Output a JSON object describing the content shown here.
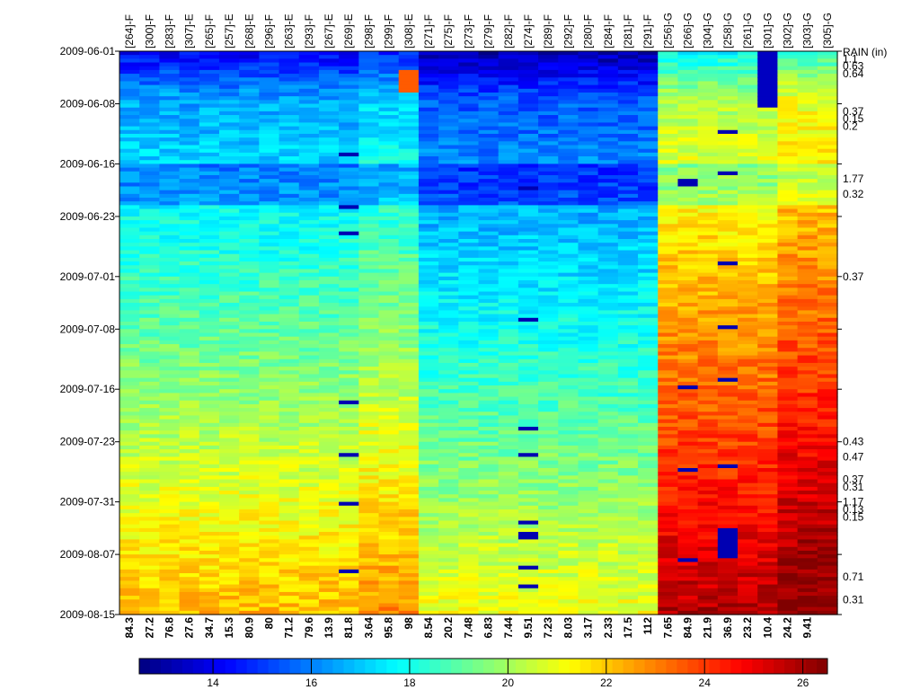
{
  "chart_data": {
    "type": "heatmap",
    "title": "",
    "right_axis_title": "RAIN (in)",
    "columns": [
      {
        "id": "[264]-F",
        "bottom": "84.3"
      },
      {
        "id": "[300]-F",
        "bottom": "27.2"
      },
      {
        "id": "[283]-F",
        "bottom": "76.8"
      },
      {
        "id": "[307]-E",
        "bottom": "27.6"
      },
      {
        "id": "[265]-F",
        "bottom": "34.7"
      },
      {
        "id": "[257]-E",
        "bottom": "15.3"
      },
      {
        "id": "[268]-E",
        "bottom": "80.9"
      },
      {
        "id": "[296]-F",
        "bottom": "80"
      },
      {
        "id": "[263]-E",
        "bottom": "71.2"
      },
      {
        "id": "[293]-F",
        "bottom": "79.6"
      },
      {
        "id": "[267]-E",
        "bottom": "13.9"
      },
      {
        "id": "[269]-E",
        "bottom": "81.8"
      },
      {
        "id": "[298]-F",
        "bottom": "3.64"
      },
      {
        "id": "[299]-F",
        "bottom": "95.8"
      },
      {
        "id": "[308]-E",
        "bottom": "98"
      },
      {
        "id": "[271]-F",
        "bottom": "8.54"
      },
      {
        "id": "[275]-F",
        "bottom": "20.2"
      },
      {
        "id": "[273]-F",
        "bottom": "7.48"
      },
      {
        "id": "[279]-F",
        "bottom": "6.83"
      },
      {
        "id": "[282]-F",
        "bottom": "7.44"
      },
      {
        "id": "[274]-F",
        "bottom": "9.51"
      },
      {
        "id": "[289]-F",
        "bottom": "7.23"
      },
      {
        "id": "[292]-F",
        "bottom": "8.03"
      },
      {
        "id": "[280]-F",
        "bottom": "3.17"
      },
      {
        "id": "[284]-F",
        "bottom": "2.33"
      },
      {
        "id": "[281]-F",
        "bottom": "17.5"
      },
      {
        "id": "[291]-F",
        "bottom": "112"
      },
      {
        "id": "[256]-G",
        "bottom": "7.65"
      },
      {
        "id": "[266]-G",
        "bottom": "84.9"
      },
      {
        "id": "[304]-G",
        "bottom": "21.9"
      },
      {
        "id": "[258]-G",
        "bottom": "36.9"
      },
      {
        "id": "[261]-G",
        "bottom": "23.2"
      },
      {
        "id": "[301]-G",
        "bottom": "10.4"
      },
      {
        "id": "[302]-G",
        "bottom": "24.2"
      },
      {
        "id": "[303]-G",
        "bottom": "9.41"
      },
      {
        "id": "[305]-G",
        "bottom": ""
      }
    ],
    "y_range": [
      "2009-06-01",
      "2009-08-15"
    ],
    "y_ticks": [
      "2009-06-01",
      "2009-06-08",
      "2009-06-16",
      "2009-06-23",
      "2009-07-01",
      "2009-07-08",
      "2009-07-16",
      "2009-07-23",
      "2009-07-31",
      "2009-08-07",
      "2009-08-15"
    ],
    "rain": [
      {
        "date": "2009-06-02",
        "label": "1.1"
      },
      {
        "date": "2009-06-03",
        "label": "0.63"
      },
      {
        "date": "2009-06-04",
        "label": "0.64"
      },
      {
        "date": "2009-06-09",
        "label": "0.37"
      },
      {
        "date": "2009-06-10",
        "label": "0.15"
      },
      {
        "date": "2009-06-11",
        "label": "0.2"
      },
      {
        "date": "2009-06-18",
        "label": "1.77"
      },
      {
        "date": "2009-06-20",
        "label": "0.32"
      },
      {
        "date": "2009-07-01",
        "label": "0.37"
      },
      {
        "date": "2009-07-23",
        "label": "0.43"
      },
      {
        "date": "2009-07-25",
        "label": "0.47"
      },
      {
        "date": "2009-07-28",
        "label": "0.37"
      },
      {
        "date": "2009-07-29",
        "label": "0.31"
      },
      {
        "date": "2009-07-31",
        "label": "1.17"
      },
      {
        "date": "2009-08-01",
        "label": "0.13"
      },
      {
        "date": "2009-08-02",
        "label": "0.15"
      },
      {
        "date": "2009-08-10",
        "label": "0.71"
      },
      {
        "date": "2009-08-13",
        "label": "0.31"
      }
    ],
    "colorbar": {
      "min": 12.5,
      "max": 26.5,
      "ticks": [
        14,
        16,
        18,
        20,
        22,
        24,
        26
      ],
      "colormap": "jet"
    },
    "z_unit": "",
    "grid": false
  }
}
